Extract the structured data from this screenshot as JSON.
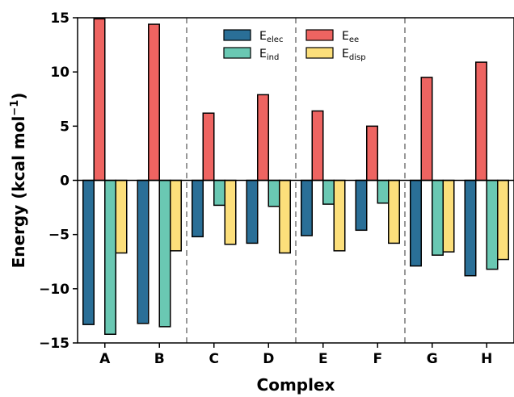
{
  "chart_data": {
    "type": "bar",
    "categories": [
      "A",
      "B",
      "C",
      "D",
      "E",
      "F",
      "G",
      "H"
    ],
    "series": [
      {
        "name": "Eelec",
        "main": "E",
        "sub": "elec",
        "color": "#2a6f97",
        "values": [
          -13.3,
          -13.2,
          -5.2,
          -5.8,
          -5.1,
          -4.6,
          -7.9,
          -8.8
        ]
      },
      {
        "name": "Eee",
        "main": "E",
        "sub": "ee",
        "color": "#ee6461",
        "values": [
          14.9,
          14.4,
          6.2,
          7.9,
          6.4,
          5.0,
          9.5,
          10.9
        ]
      },
      {
        "name": "Eind",
        "main": "E",
        "sub": "ind",
        "color": "#6ac8b3",
        "values": [
          -14.2,
          -13.5,
          -2.3,
          -2.4,
          -2.2,
          -2.1,
          -6.9,
          -8.2
        ]
      },
      {
        "name": "Edisp",
        "main": "E",
        "sub": "disp",
        "color": "#fcdf7b",
        "values": [
          -6.7,
          -6.5,
          -5.9,
          -6.7,
          -6.5,
          -5.8,
          -6.6,
          -7.3
        ]
      }
    ],
    "xlabel": "Complex",
    "ylabel": "Energy (kcal mol",
    "ylabel_sup": "−1",
    "ylabel_close": ")",
    "ylim": [
      -15,
      15
    ],
    "yticks": [
      -15,
      -10,
      -5,
      0,
      5,
      10,
      15
    ],
    "group_dividers_after": [
      1,
      3,
      5
    ],
    "legend_position": "top-center",
    "grid": false
  }
}
